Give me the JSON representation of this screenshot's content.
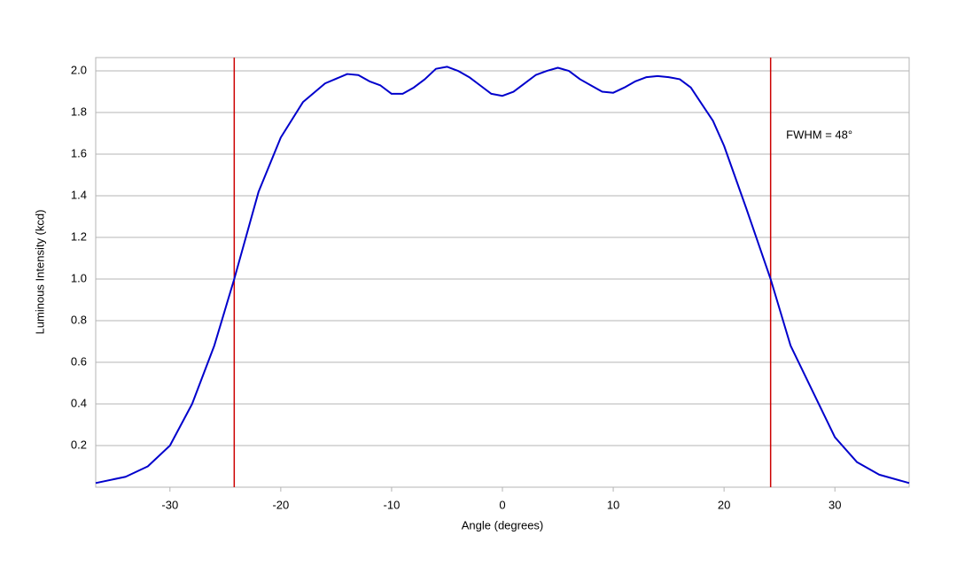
{
  "chart_data": {
    "type": "line",
    "xlabel": "Angle (degrees)",
    "ylabel": "Luminous Intensity (kcd)",
    "x": [
      -36.7,
      -34,
      -32,
      -30,
      -28,
      -26,
      -24.2,
      -22,
      -20,
      -18,
      -16,
      -14,
      -13,
      -12,
      -11,
      -10,
      -9,
      -8,
      -7,
      -6,
      -5,
      -4,
      -3,
      -2,
      -1,
      0,
      1,
      2,
      3,
      4,
      5,
      6,
      7,
      8,
      9,
      10,
      11,
      12,
      13,
      14,
      15,
      16,
      17,
      18,
      19,
      20,
      22,
      24.2,
      26,
      28,
      30,
      32,
      34,
      36.7
    ],
    "series": [
      {
        "color": "#0000cc",
        "values": [
          0.02,
          0.05,
          0.1,
          0.2,
          0.4,
          0.68,
          1.0,
          1.42,
          1.68,
          1.85,
          1.94,
          1.985,
          1.98,
          1.95,
          1.93,
          1.89,
          1.89,
          1.92,
          1.96,
          2.01,
          2.02,
          2.0,
          1.97,
          1.93,
          1.89,
          1.88,
          1.9,
          1.94,
          1.98,
          2.0,
          2.015,
          2.0,
          1.96,
          1.93,
          1.9,
          1.895,
          1.92,
          1.95,
          1.97,
          1.975,
          1.97,
          1.96,
          1.92,
          1.84,
          1.76,
          1.64,
          1.34,
          1.0,
          0.68,
          0.46,
          0.24,
          0.12,
          0.06,
          0.02
        ]
      }
    ],
    "vlines": [
      {
        "x": -24.2,
        "color": "#cc0000"
      },
      {
        "x": 24.2,
        "color": "#cc0000"
      }
    ],
    "annotation": {
      "text": "FWHM = 48°",
      "x": 25.6,
      "y": 1.69
    },
    "xlim": [
      -36.7,
      36.7
    ],
    "xticks": [
      -30,
      -20,
      -10,
      0,
      10,
      20,
      30
    ],
    "ylim": [
      0,
      2.064
    ],
    "yticks": [
      0.2,
      0.4,
      0.6,
      0.8,
      {
        "value": 1,
        "label": "1.0"
      },
      1.2,
      1.4,
      1.6,
      1.8,
      {
        "value": 2,
        "label": "2.0"
      }
    ],
    "grid": true
  }
}
